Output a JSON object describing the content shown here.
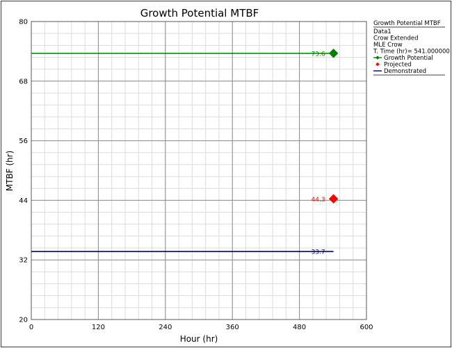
{
  "chart_data": {
    "type": "line",
    "title": "Growth Potential MTBF",
    "xlabel": "Hour (hr)",
    "ylabel": "MTBF (hr)",
    "xlim": [
      0,
      600
    ],
    "ylim": [
      20,
      80
    ],
    "x_ticks": [
      0,
      120,
      240,
      360,
      480,
      600
    ],
    "y_ticks": [
      20,
      32,
      44,
      56,
      68,
      80
    ],
    "grid": true,
    "legend_position": "right",
    "legend": {
      "title": "Growth Potential MTBF",
      "lines": [
        "Data1",
        "Crow Extended",
        "MLE Crow",
        "T. Time (hr)= 541.000000"
      ]
    },
    "series": [
      {
        "name": "Growth Potential",
        "kind": "line-with-marker",
        "color": "#008000",
        "x": [
          0,
          541
        ],
        "y": [
          73.6,
          73.6
        ],
        "marker_x": 541,
        "label": "73.6"
      },
      {
        "name": "Projected",
        "kind": "marker",
        "color": "#ff0000",
        "x": [
          541
        ],
        "y": [
          44.3
        ],
        "label": "44.3"
      },
      {
        "name": "Demonstrated",
        "kind": "line",
        "color": "#000080",
        "x": [
          0,
          541
        ],
        "y": [
          33.7,
          33.7
        ],
        "label": "33.7"
      }
    ]
  }
}
